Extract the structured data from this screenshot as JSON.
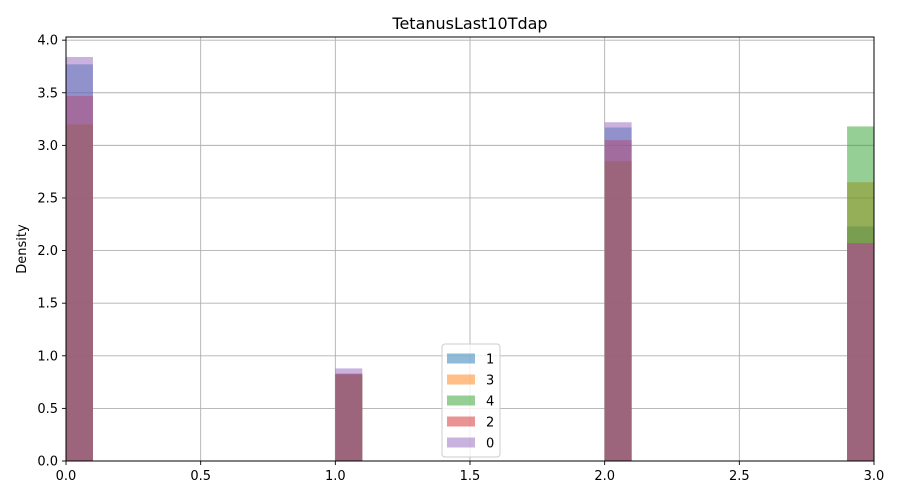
{
  "chart_data": {
    "type": "bar",
    "title": "TetanusLast10Tdap",
    "xlabel": "",
    "ylabel": "Density",
    "xlim": [
      0.0,
      3.0
    ],
    "ylim": [
      0.0,
      4.03
    ],
    "bin_width": 0.1,
    "x_ticks": [
      "0.0",
      "0.5",
      "1.0",
      "1.5",
      "2.0",
      "2.5",
      "3.0"
    ],
    "y_ticks": [
      "0.0",
      "0.5",
      "1.0",
      "1.5",
      "2.0",
      "2.5",
      "3.0",
      "3.5",
      "4.0"
    ],
    "grid": true,
    "legend_position": "bottom-center",
    "bin_starts": [
      0.0,
      1.0,
      2.0,
      2.9
    ],
    "series": [
      {
        "name": "1",
        "color": "#1f77b4",
        "values": [
          3.77,
          0.83,
          3.17,
          2.23
        ]
      },
      {
        "name": "3",
        "color": "#ff7f0e",
        "values": [
          3.2,
          0.82,
          2.85,
          2.65
        ]
      },
      {
        "name": "4",
        "color": "#2ca02c",
        "values": [
          3.2,
          0.82,
          2.85,
          3.18
        ]
      },
      {
        "name": "2",
        "color": "#d62728",
        "values": [
          3.47,
          0.83,
          3.05,
          2.07
        ]
      },
      {
        "name": "0",
        "color": "#9467bd",
        "values": [
          3.84,
          0.88,
          3.22,
          2.07
        ]
      }
    ]
  }
}
